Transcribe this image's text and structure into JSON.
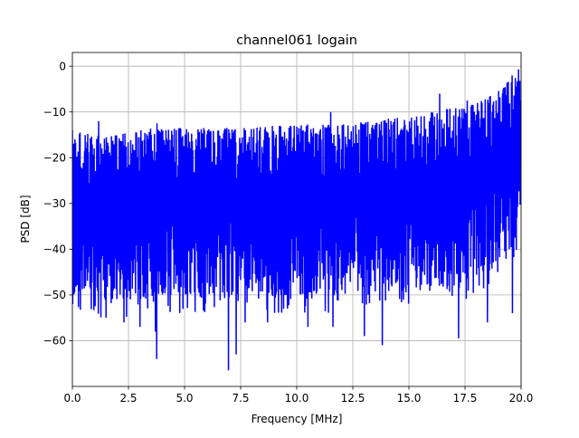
{
  "chart_data": {
    "type": "line",
    "title": "channel061 logain",
    "xlabel": "Frequency [MHz]",
    "ylabel": "PSD [dB]",
    "xlim": [
      0,
      20
    ],
    "ylim": [
      -70,
      3
    ],
    "xticks": [
      0,
      2.5,
      5,
      7.5,
      10,
      12.5,
      15,
      17.5,
      20
    ],
    "xtick_labels": [
      "0.0",
      "2.5",
      "5.0",
      "7.5",
      "10.0",
      "12.5",
      "15.0",
      "17.5",
      "20.0"
    ],
    "yticks": [
      0,
      -10,
      -20,
      -30,
      -40,
      -50,
      -60
    ],
    "ytick_labels": [
      "0",
      "−10",
      "−20",
      "−30",
      "−40",
      "−50",
      "−60"
    ],
    "grid": true,
    "legend": "none",
    "series": [
      {
        "color": "#0000ff",
        "upper_envelope": {
          "x": [
            0.0,
            0.5,
            1.0,
            1.5,
            2.0,
            2.5,
            3.0,
            3.5,
            4.0,
            5.0,
            6.0,
            7.0,
            8.0,
            9.0,
            10.0,
            11.0,
            12.0,
            13.0,
            14.0,
            15.0,
            15.5,
            16.0,
            16.5,
            17.0,
            17.5,
            18.0,
            18.5,
            19.0,
            19.5,
            20.0
          ],
          "y": [
            -14,
            -14.5,
            -15,
            -15.5,
            -15,
            -14.5,
            -14,
            -13.5,
            -13.5,
            -13.5,
            -13.5,
            -13.5,
            -13.5,
            -13,
            -13,
            -12.5,
            -12.5,
            -12,
            -11.5,
            -11,
            -10.5,
            -10,
            -9.5,
            -9,
            -8.5,
            -8,
            -7,
            -5,
            -3,
            0
          ]
        },
        "lower_envelope": {
          "x": [
            0.0,
            0.5,
            1.0,
            1.5,
            2.0,
            2.5,
            3.0,
            3.5,
            4.0,
            5.0,
            6.0,
            7.0,
            8.0,
            9.0,
            10.0,
            11.0,
            12.0,
            13.0,
            14.0,
            15.0,
            16.0,
            17.0,
            17.5,
            18.0,
            18.5,
            19.0,
            19.5,
            20.0
          ],
          "y": [
            -48,
            -50,
            -51,
            -51,
            -51,
            -51,
            -51,
            -51,
            -50,
            -50,
            -50,
            -50,
            -50,
            -50,
            -50,
            -50,
            -50,
            -49,
            -49,
            -48,
            -48,
            -48,
            -47,
            -46,
            -44,
            -42,
            -40,
            -36
          ]
        },
        "deep_dips": [
          {
            "x": 3.75,
            "y": -64
          },
          {
            "x": 6.95,
            "y": -66.5
          },
          {
            "x": 7.3,
            "y": -63
          },
          {
            "x": 13.8,
            "y": -61
          },
          {
            "x": 17.2,
            "y": -59.5
          },
          {
            "x": 1.5,
            "y": -55
          },
          {
            "x": 2.3,
            "y": -56
          },
          {
            "x": 3.0,
            "y": -57
          },
          {
            "x": 3.7,
            "y": -58
          },
          {
            "x": 7.7,
            "y": -56
          },
          {
            "x": 8.7,
            "y": -56
          },
          {
            "x": 10.5,
            "y": -57
          },
          {
            "x": 11.6,
            "y": -57
          },
          {
            "x": 13.0,
            "y": -59
          },
          {
            "x": 18.5,
            "y": -56
          },
          {
            "x": 19.6,
            "y": -54
          }
        ],
        "peaks": [
          {
            "x": 1.15,
            "y": -12
          },
          {
            "x": 3.75,
            "y": -12.5
          },
          {
            "x": 11.5,
            "y": -10
          },
          {
            "x": 16.35,
            "y": -6
          },
          {
            "x": 17.6,
            "y": -7.5
          },
          {
            "x": 19.6,
            "y": -2
          }
        ]
      }
    ]
  }
}
